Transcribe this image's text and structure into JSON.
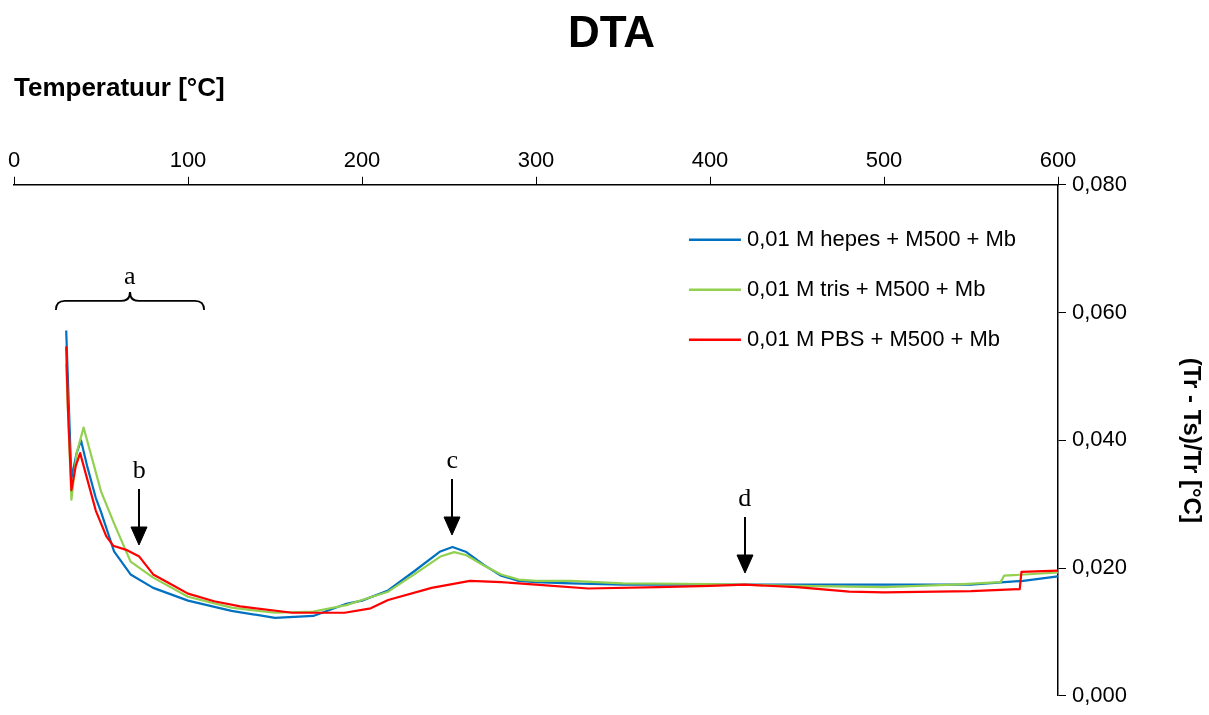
{
  "chart_data": {
    "type": "line",
    "title": "DTA",
    "xlabel": "Temperatuur [°C]",
    "ylabel": "(Tr - Ts)/Tr [°C]",
    "xlim": [
      0,
      600
    ],
    "xticks": [
      0,
      100,
      200,
      300,
      400,
      500,
      600
    ],
    "ylim": [
      0,
      0.08
    ],
    "yticks": [
      {
        "value": 0,
        "label": "0,000"
      },
      {
        "value": 0.02,
        "label": "0,020"
      },
      {
        "value": 0.04,
        "label": "0,040"
      },
      {
        "value": 0.06,
        "label": "0,060"
      },
      {
        "value": 0.08,
        "label": "0,080"
      }
    ],
    "grid": false,
    "legend": "top right",
    "marker": "none",
    "line_style": "solid",
    "series": [
      {
        "name": "0,01 M hepes + M500 + Mb",
        "color": "#0070c0",
        "x": [
          30,
          31,
          33,
          36,
          38.5,
          42,
          47,
          50,
          57.5,
          67,
          80,
          100,
          125,
          150,
          172,
          191,
          200,
          215,
          230,
          245,
          252,
          260,
          270,
          280,
          290,
          300,
          320,
          350,
          400,
          450,
          500,
          550,
          580,
          600
        ],
        "values": [
          0.0572,
          null,
          0.034,
          0.038,
          0.04,
          0.036,
          0.031,
          0.0288,
          0.0226,
          0.019,
          0.0169,
          0.0149,
          0.0133,
          0.0122,
          0.0125,
          0.0144,
          0.0149,
          0.0165,
          0.0195,
          0.0226,
          0.0233,
          0.0225,
          0.0205,
          0.0188,
          0.018,
          0.0178,
          0.0176,
          0.0174,
          null,
          null,
          null,
          0.0174,
          0.018,
          0.0187
        ]
      },
      {
        "name": "0,01 M tris + M500 + Mb",
        "color": "#92d050",
        "x": [
          30,
          33,
          36,
          40,
          44,
          50,
          57.5,
          67,
          80,
          100,
          125,
          150,
          172,
          191,
          200,
          215,
          230,
          245,
          253,
          260,
          270,
          280,
          290,
          300,
          320,
          350,
          400,
          450,
          500,
          540,
          567,
          569,
          600
        ],
        "values": [
          0.052,
          0.0307,
          0.038,
          0.042,
          0.038,
          0.032,
          0.027,
          0.021,
          0.0185,
          0.0155,
          0.0138,
          0.013,
          0.0132,
          0.0142,
          0.015,
          0.0163,
          0.019,
          0.0218,
          0.0225,
          0.022,
          0.0204,
          0.019,
          0.0182,
          0.018,
          0.018,
          0.0176,
          0.0175,
          0.0172,
          0.017,
          0.0174,
          0.0178,
          0.0188,
          0.0193
        ]
      },
      {
        "name": "0,01 M PBS + M500 + Mb",
        "color": "#ff0000",
        "x": [
          30,
          31,
          33,
          35.5,
          38,
          42,
          47,
          53,
          57,
          65,
          72,
          80,
          90,
          100,
          115,
          130,
          160,
          190,
          205,
          215,
          240,
          262,
          280,
          300,
          330,
          370,
          400,
          420,
          450,
          480,
          500,
          550,
          578,
          579,
          600
        ],
        "values": [
          0.0547,
          0.045,
          0.0322,
          0.036,
          0.038,
          0.034,
          0.029,
          0.025,
          0.0235,
          0.0228,
          0.0218,
          0.019,
          0.0175,
          0.016,
          0.0148,
          0.014,
          0.013,
          0.013,
          0.0137,
          0.015,
          0.0169,
          0.018,
          0.0178,
          0.0174,
          0.0168,
          0.017,
          0.0172,
          0.0174,
          0.017,
          0.0163,
          0.0162,
          0.0164,
          0.0167,
          0.0194,
          0.0196
        ]
      }
    ],
    "annotations": [
      "a",
      {
        "text": "b",
        "x": 72,
        "y": 0.0218
      },
      {
        "text": "c",
        "x": 252,
        "y": 0.0233
      },
      {
        "text": "d",
        "x": 420,
        "y": 0.0174
      }
    ]
  }
}
